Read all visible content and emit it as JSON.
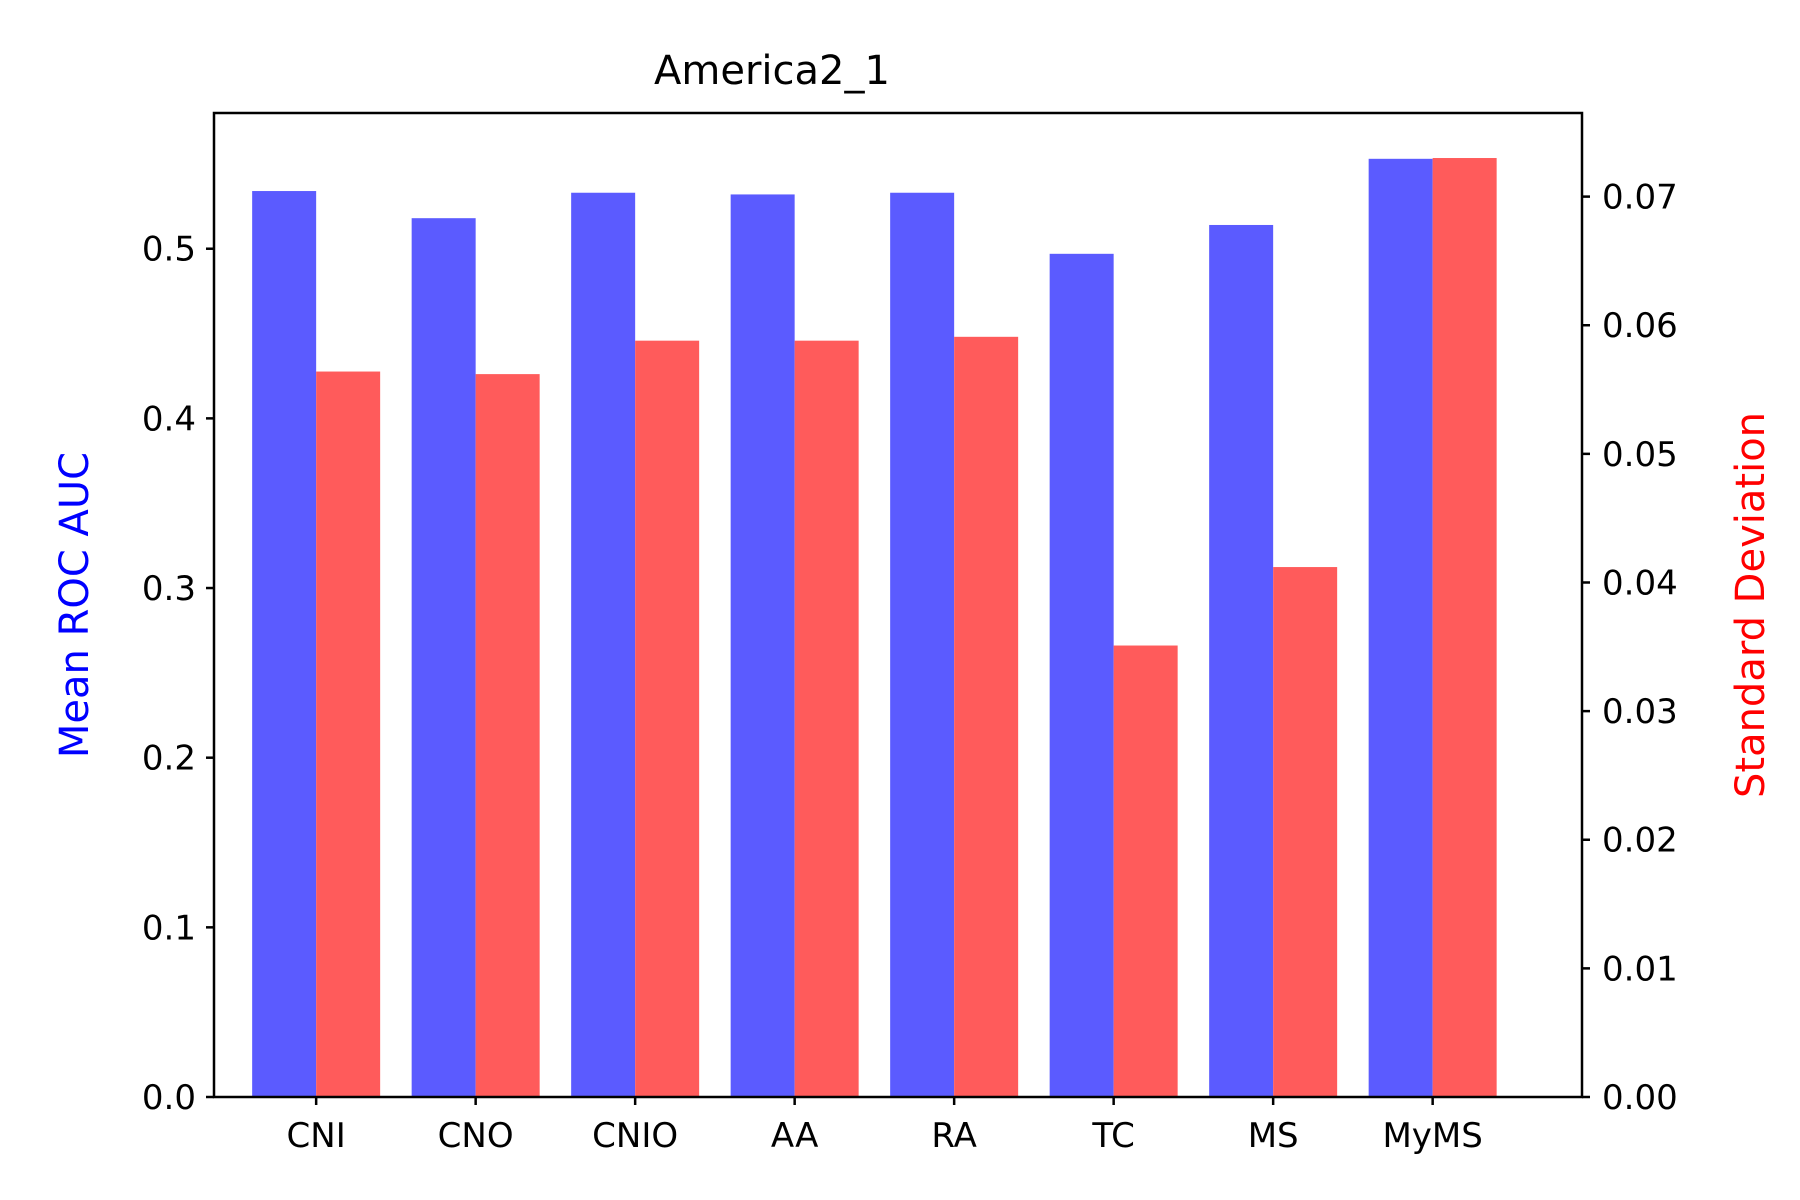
{
  "chart_data": {
    "type": "bar",
    "title": "America2_1",
    "categories": [
      "CNI",
      "CNO",
      "CNIO",
      "AA",
      "RA",
      "TC",
      "MS",
      "MyMS"
    ],
    "ylabel_left": "Mean ROC AUC",
    "ylabel_right": "Standard Deviation",
    "ylim_left": [
      0,
      0.58
    ],
    "ylim_right": [
      0,
      0.0765
    ],
    "yticks_left": [
      "0.0",
      "0.1",
      "0.2",
      "0.3",
      "0.4",
      "0.5"
    ],
    "yticks_right": [
      "0.00",
      "0.01",
      "0.02",
      "0.03",
      "0.04",
      "0.05",
      "0.06",
      "0.07"
    ],
    "series": [
      {
        "name": "Mean ROC AUC",
        "axis": "left",
        "color": "#5b5bff",
        "values": [
          0.534,
          0.518,
          0.533,
          0.532,
          0.533,
          0.497,
          0.514,
          0.553
        ]
      },
      {
        "name": "Standard Deviation",
        "axis": "right",
        "color": "#ff5b5b",
        "values": [
          0.0564,
          0.0562,
          0.0588,
          0.0588,
          0.0591,
          0.0351,
          0.0412,
          0.073
        ]
      }
    ],
    "grid": false,
    "legend": "none",
    "left_label_color": "#0000ff",
    "right_label_color": "#ff0000"
  }
}
